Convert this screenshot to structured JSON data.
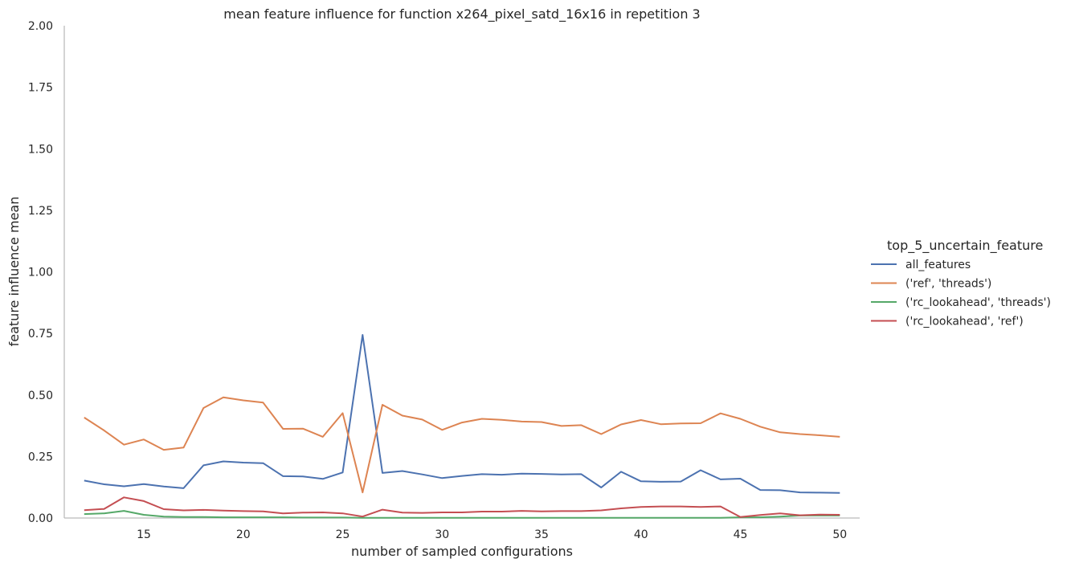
{
  "chart_data": {
    "type": "line",
    "title": "mean feature influence for function x264_pixel_satd_16x16 in repetition 3",
    "xlabel": "number of sampled configurations",
    "ylabel": "feature influence mean",
    "xlim": [
      11,
      51
    ],
    "ylim": [
      0,
      2
    ],
    "xticks": [
      15,
      20,
      25,
      30,
      35,
      40,
      45,
      50
    ],
    "yticks": [
      0.0,
      0.25,
      0.5,
      0.75,
      1.0,
      1.25,
      1.5,
      1.75,
      2.0
    ],
    "ytick_labels": [
      "0.00",
      "0.25",
      "0.50",
      "0.75",
      "1.00",
      "1.25",
      "1.50",
      "1.75",
      "2.00"
    ],
    "grid": false,
    "legend": {
      "title": "top_5_uncertain_feature",
      "placement": "right"
    },
    "x": [
      12,
      13,
      14,
      15,
      16,
      17,
      18,
      19,
      20,
      21,
      22,
      23,
      24,
      25,
      26,
      27,
      28,
      29,
      30,
      31,
      32,
      33,
      34,
      35,
      36,
      37,
      38,
      39,
      40,
      41,
      42,
      43,
      44,
      45,
      46,
      47,
      48,
      49,
      50
    ],
    "series": [
      {
        "name": "all_features",
        "color": "#4c72b0",
        "values": [
          0.152,
          0.137,
          0.129,
          0.138,
          0.128,
          0.121,
          0.214,
          0.23,
          0.225,
          0.223,
          0.17,
          0.169,
          0.159,
          0.185,
          0.744,
          0.183,
          0.191,
          0.177,
          0.162,
          0.171,
          0.178,
          0.176,
          0.18,
          0.179,
          0.177,
          0.178,
          0.124,
          0.188,
          0.149,
          0.147,
          0.148,
          0.194,
          0.157,
          0.16,
          0.114,
          0.113,
          0.104,
          0.103,
          0.102
        ]
      },
      {
        "name": "('ref', 'threads')",
        "color": "#dd8452",
        "values": [
          0.408,
          0.356,
          0.298,
          0.319,
          0.277,
          0.286,
          0.447,
          0.49,
          0.478,
          0.469,
          0.362,
          0.363,
          0.33,
          0.426,
          0.104,
          0.46,
          0.416,
          0.4,
          0.358,
          0.388,
          0.403,
          0.399,
          0.392,
          0.39,
          0.374,
          0.377,
          0.341,
          0.38,
          0.398,
          0.381,
          0.384,
          0.385,
          0.425,
          0.403,
          0.371,
          0.348,
          0.341,
          0.336,
          0.33
        ]
      },
      {
        "name": "('rc_lookahead', 'threads')",
        "color": "#55a868",
        "values": [
          0.016,
          0.019,
          0.029,
          0.013,
          0.006,
          0.004,
          0.004,
          0.003,
          0.003,
          0.003,
          0.003,
          0.002,
          0.002,
          0.002,
          0.001,
          0.001,
          0.001,
          0.001,
          0.001,
          0.001,
          0.001,
          0.001,
          0.001,
          0.001,
          0.001,
          0.001,
          0.001,
          0.001,
          0.001,
          0.001,
          0.001,
          0.001,
          0.001,
          0.003,
          0.003,
          0.006,
          0.01,
          0.01,
          0.01
        ]
      },
      {
        "name": "('rc_lookahead', 'ref')",
        "color": "#c44e52",
        "values": [
          0.032,
          0.037,
          0.084,
          0.069,
          0.036,
          0.031,
          0.033,
          0.03,
          0.028,
          0.027,
          0.019,
          0.022,
          0.023,
          0.019,
          0.006,
          0.034,
          0.022,
          0.021,
          0.023,
          0.023,
          0.026,
          0.026,
          0.029,
          0.027,
          0.028,
          0.028,
          0.031,
          0.039,
          0.045,
          0.047,
          0.047,
          0.045,
          0.047,
          0.004,
          0.012,
          0.019,
          0.011,
          0.014,
          0.013
        ]
      }
    ]
  }
}
